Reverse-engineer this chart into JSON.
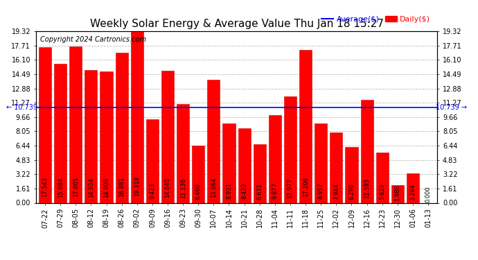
{
  "title": "Weekly Solar Energy & Average Value Thu Jan 18 15:27",
  "copyright": "Copyright 2024 Cartronics.com",
  "legend_avg": "Average($)",
  "legend_daily": "Daily($)",
  "average_value": 10.739,
  "categories": [
    "07-22",
    "07-29",
    "08-05",
    "08-12",
    "08-19",
    "08-26",
    "09-02",
    "09-09",
    "09-16",
    "09-23",
    "09-30",
    "10-07",
    "10-14",
    "10-21",
    "10-28",
    "11-04",
    "11-11",
    "11-18",
    "11-25",
    "12-02",
    "12-09",
    "12-16",
    "12-23",
    "12-30",
    "01-06",
    "01-13"
  ],
  "values": [
    17.543,
    15.684,
    17.605,
    14.934,
    14.809,
    16.881,
    19.318,
    9.423,
    14.84,
    11.136,
    6.46,
    13.864,
    8.931,
    8.422,
    6.631,
    9.877,
    11.977,
    17.206,
    8.957,
    7.944,
    6.29,
    11.593,
    5.629,
    1.98,
    3.284,
    0.0
  ],
  "bar_color": "#ff0000",
  "bar_edge_color": "#cc0000",
  "avg_line_color": "#0000ff",
  "background_color": "#ffffff",
  "grid_color": "#bbbbbb",
  "ymin": 0.0,
  "ymax": 19.32,
  "yticks": [
    0.0,
    1.61,
    3.22,
    4.83,
    6.44,
    8.05,
    9.66,
    11.27,
    12.88,
    14.49,
    16.1,
    17.71,
    19.32
  ],
  "title_fontsize": 11,
  "tick_fontsize": 7,
  "bar_label_fontsize": 6,
  "copyright_fontsize": 7,
  "legend_fontsize": 8
}
